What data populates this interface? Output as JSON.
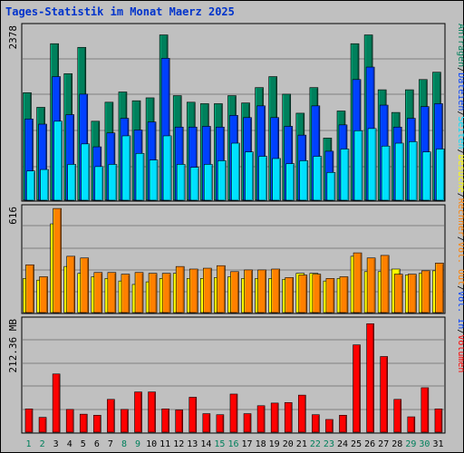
{
  "chart_data": [
    {
      "type": "bar",
      "title": "Tages-Statistik im Monat Maerz 2025",
      "ylabel": "2378",
      "ylim": [
        0,
        2378
      ],
      "categories": [
        "1",
        "2",
        "3",
        "4",
        "5",
        "6",
        "7",
        "8",
        "9",
        "10",
        "11",
        "12",
        "13",
        "14",
        "15",
        "16",
        "17",
        "18",
        "19",
        "20",
        "21",
        "22",
        "23",
        "24",
        "25",
        "26",
        "27",
        "28",
        "29",
        "30",
        "31"
      ],
      "series": [
        {
          "name": "Anfragen",
          "values": [
            1470,
            1270,
            2140,
            1730,
            2090,
            1080,
            1340,
            1480,
            1360,
            1400,
            2260,
            1430,
            1340,
            1320,
            1320,
            1430,
            1330,
            1540,
            1690,
            1450,
            1190,
            1540,
            850,
            1220,
            2140,
            2260,
            1510,
            1200,
            1510,
            1650,
            1750
          ]
        },
        {
          "name": "Dateien",
          "values": [
            1110,
            1040,
            1690,
            1170,
            1450,
            730,
            920,
            1120,
            960,
            1070,
            1940,
            1000,
            1000,
            1010,
            1000,
            1160,
            1130,
            1290,
            1130,
            1010,
            890,
            1290,
            670,
            1030,
            1650,
            1820,
            1300,
            1000,
            1120,
            1280,
            1320
          ]
        },
        {
          "name": "Seiten",
          "values": [
            400,
            420,
            1080,
            490,
            770,
            460,
            490,
            880,
            640,
            550,
            880,
            490,
            450,
            490,
            540,
            780,
            660,
            600,
            570,
            500,
            540,
            600,
            380,
            700,
            950,
            980,
            740,
            780,
            800,
            660,
            700
          ]
        }
      ]
    },
    {
      "type": "bar",
      "ylabel": "616",
      "ylim": [
        0,
        616
      ],
      "categories": [
        "1",
        "2",
        "3",
        "4",
        "5",
        "6",
        "7",
        "8",
        "9",
        "10",
        "11",
        "12",
        "13",
        "14",
        "15",
        "16",
        "17",
        "18",
        "19",
        "20",
        "21",
        "22",
        "23",
        "24",
        "25",
        "26",
        "27",
        "28",
        "29",
        "30",
        "31"
      ],
      "series": [
        {
          "name": "Besuche",
          "values": [
            200,
            190,
            520,
            270,
            230,
            210,
            200,
            185,
            165,
            180,
            200,
            230,
            200,
            200,
            205,
            210,
            200,
            200,
            200,
            195,
            230,
            230,
            185,
            200,
            330,
            240,
            240,
            255,
            220,
            230,
            245
          ]
        },
        {
          "name": "Rechner",
          "values": [
            280,
            210,
            610,
            330,
            320,
            235,
            235,
            225,
            235,
            230,
            230,
            270,
            255,
            260,
            275,
            240,
            250,
            250,
            255,
            205,
            220,
            225,
            200,
            210,
            350,
            320,
            335,
            225,
            225,
            245,
            290
          ]
        }
      ]
    },
    {
      "type": "bar",
      "ylabel": "212.36 MB",
      "ylim": [
        0,
        212.36
      ],
      "categories": [
        "1",
        "2",
        "3",
        "4",
        "5",
        "6",
        "7",
        "8",
        "9",
        "10",
        "11",
        "12",
        "13",
        "14",
        "15",
        "16",
        "17",
        "18",
        "19",
        "20",
        "21",
        "22",
        "23",
        "24",
        "25",
        "26",
        "27",
        "28",
        "29",
        "30",
        "31"
      ],
      "series": [
        {
          "name": "Volumen",
          "values": [
            44,
            28,
            110,
            43,
            34,
            32,
            62,
            43,
            76,
            76,
            44,
            42,
            66,
            35,
            33,
            72,
            35,
            50,
            55,
            56,
            70,
            33,
            24,
            32,
            165,
            205,
            143,
            62,
            29,
            84,
            44
          ]
        }
      ]
    }
  ],
  "labels": {
    "title": "Tages-Statistik im Monat Maerz 2025",
    "y1": "2378",
    "y2": "616",
    "y3": "212.36 MB",
    "right1": [
      "Anfragen",
      "/",
      "Dateien",
      "/",
      "Seiten",
      "/",
      "Besuche",
      "/",
      "Rechner",
      "/",
      "Vol. Out",
      "/",
      "Vol. In",
      "/",
      "Volumen"
    ],
    "days": [
      "1",
      "2",
      "3",
      "4",
      "5",
      "6",
      "7",
      "8",
      "9",
      "10",
      "11",
      "12",
      "13",
      "14",
      "15",
      "16",
      "17",
      "18",
      "19",
      "20",
      "21",
      "22",
      "23",
      "24",
      "25",
      "26",
      "27",
      "28",
      "29",
      "30",
      "31"
    ],
    "weekend_days": [
      "1",
      "2",
      "8",
      "9",
      "15",
      "16",
      "22",
      "23",
      "29",
      "30"
    ]
  },
  "colors": {
    "anfragen": "#00805c",
    "dateien": "#0040ff",
    "seiten": "#00e0ff",
    "besuche": "#ffff00",
    "rechner": "#ff8000",
    "volumen": "#ff0000",
    "vol_out": "#ff8000",
    "vol_in": "#0040ff",
    "title": "#0033cc",
    "weekend": "#00805c"
  }
}
